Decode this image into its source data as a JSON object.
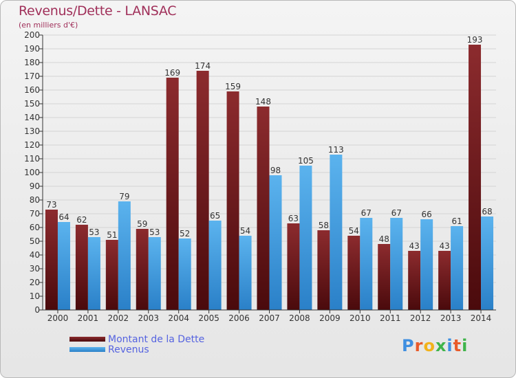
{
  "title": "Revenus/Dette - LANSAC",
  "subtitle": "(en milliers d'€)",
  "logo": {
    "letters": [
      "P",
      "r",
      "o",
      "x",
      "i",
      "t",
      "i"
    ],
    "colors": [
      "#3f8fe0",
      "#e85a2a",
      "#f2b21b",
      "#3fb44a",
      "#3f8fe0",
      "#e85a2a",
      "#3fb44a"
    ]
  },
  "colors": {
    "dette": "#7a1f22",
    "revenus": "#3f9fe0",
    "axis": "#333333",
    "grid": "#d4d4d4",
    "label": "#333333",
    "legend_text": "#5563e0"
  },
  "chart_data": {
    "type": "bar",
    "title": "Revenus/Dette - LANSAC",
    "subtitle": "(en milliers d'€)",
    "categories": [
      "2000",
      "2001",
      "2002",
      "2003",
      "2004",
      "2005",
      "2006",
      "2007",
      "2008",
      "2009",
      "2010",
      "2011",
      "2012",
      "2013",
      "2014"
    ],
    "series": [
      {
        "name": "Montant de la Dette",
        "values": [
          73,
          62,
          51,
          59,
          169,
          174,
          159,
          148,
          63,
          58,
          54,
          48,
          43,
          43,
          193
        ]
      },
      {
        "name": "Revenus",
        "values": [
          64,
          53,
          79,
          53,
          52,
          65,
          54,
          98,
          105,
          113,
          67,
          67,
          66,
          61,
          68
        ]
      }
    ],
    "ylim": [
      0,
      200
    ],
    "yticks": [
      0,
      10,
      20,
      30,
      40,
      50,
      60,
      70,
      80,
      90,
      100,
      110,
      120,
      130,
      140,
      150,
      160,
      170,
      180,
      190,
      200
    ],
    "grid": true,
    "legend_position": "bottom-left"
  }
}
